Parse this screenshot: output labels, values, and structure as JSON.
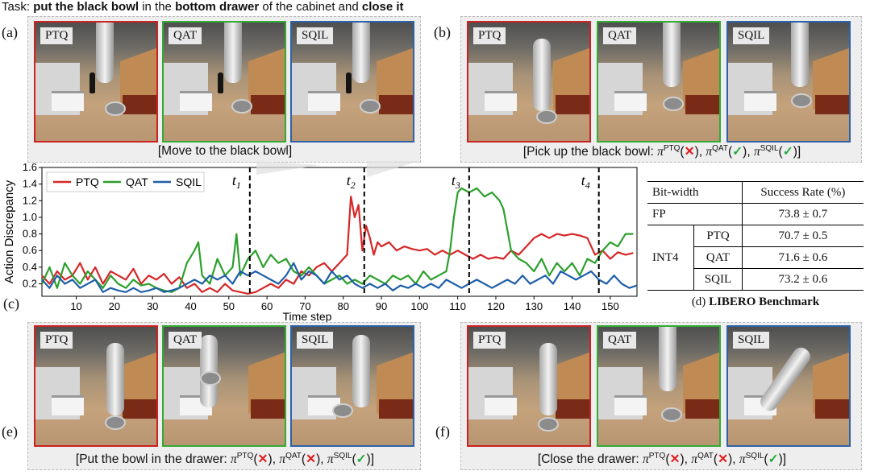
{
  "task": {
    "prefix": "Task: ",
    "b1": "put the black bowl",
    "m1": " in the ",
    "b2": "bottom drawer",
    "m2": " of the cabinet and ",
    "b3": "close it"
  },
  "panels": {
    "a": {
      "label": "(a)",
      "caption": "[Move to the black bowl]",
      "tags": [
        "PTQ",
        "QAT",
        "SQIL"
      ]
    },
    "b": {
      "label": "(b)",
      "caption_text": "[Pick up the black bowl: ",
      "tags": [
        "PTQ",
        "QAT",
        "SQIL"
      ],
      "marks": {
        "ptq": "correct-fail",
        "qat": "correct",
        "sqil": "correct"
      }
    },
    "e": {
      "label": "(e)",
      "caption_text": "[Put the bowl in the drawer: ",
      "tags": [
        "PTQ",
        "QAT",
        "SQIL"
      ]
    },
    "f": {
      "label": "(f)",
      "caption_text": "[Close the drawer: ",
      "tags": [
        "PTQ",
        "QAT",
        "SQIL"
      ]
    }
  },
  "symbols": {
    "pi": "π",
    "ptq": "PTQ",
    "qat": "QAT",
    "sqil": "SQIL",
    "cross": "✕",
    "check": "✓",
    "open": "(",
    "close": ")",
    "sep": ", ",
    "end": "]"
  },
  "chart_label": "(c)",
  "chart_data": {
    "type": "line",
    "xlabel": "Time step",
    "ylabel": "Action Discrepancy",
    "xlim": [
      1,
      157
    ],
    "ylim": [
      0.05,
      1.6
    ],
    "xticks": [
      10,
      20,
      30,
      40,
      50,
      60,
      70,
      80,
      90,
      100,
      110,
      120,
      130,
      140,
      150
    ],
    "yticks": [
      0.2,
      0.4,
      0.6,
      0.8,
      1.0,
      1.2,
      1.4,
      1.6
    ],
    "ytick_labels": [
      "0.2",
      "0.4",
      "0.6",
      "0.8",
      "1.0",
      "1.2",
      "1.4",
      "1.6"
    ],
    "legend": "top-left",
    "vlines": [
      {
        "x": 55.5,
        "label": "t",
        "sub": "1"
      },
      {
        "x": 85.5,
        "label": "t",
        "sub": "2"
      },
      {
        "x": 113,
        "label": "t",
        "sub": "3"
      },
      {
        "x": 147,
        "label": "t",
        "sub": "4"
      }
    ],
    "series": [
      {
        "name": "PTQ",
        "color": "#d62728",
        "points": [
          [
            1,
            0.3
          ],
          [
            3,
            0.2
          ],
          [
            5,
            0.35
          ],
          [
            7,
            0.25
          ],
          [
            9,
            0.3
          ],
          [
            11,
            0.45
          ],
          [
            13,
            0.25
          ],
          [
            15,
            0.4
          ],
          [
            17,
            0.2
          ],
          [
            19,
            0.35
          ],
          [
            21,
            0.3
          ],
          [
            23,
            0.25
          ],
          [
            25,
            0.38
          ],
          [
            27,
            0.2
          ],
          [
            29,
            0.3
          ],
          [
            31,
            0.25
          ],
          [
            33,
            0.32
          ],
          [
            35,
            0.2
          ],
          [
            37,
            0.28
          ],
          [
            39,
            0.15
          ],
          [
            41,
            0.2
          ],
          [
            43,
            0.1
          ],
          [
            45,
            0.15
          ],
          [
            47,
            0.1
          ],
          [
            49,
            0.2
          ],
          [
            51,
            0.12
          ],
          [
            53,
            0.1
          ],
          [
            55,
            0.08
          ],
          [
            57,
            0.1
          ],
          [
            59,
            0.15
          ],
          [
            61,
            0.2
          ],
          [
            63,
            0.15
          ],
          [
            65,
            0.25
          ],
          [
            67,
            0.2
          ],
          [
            69,
            0.35
          ],
          [
            71,
            0.3
          ],
          [
            73,
            0.4
          ],
          [
            75,
            0.45
          ],
          [
            77,
            0.35
          ],
          [
            79,
            0.45
          ],
          [
            81,
            0.55
          ],
          [
            82,
            1.25
          ],
          [
            83,
            1.0
          ],
          [
            84,
            1.15
          ],
          [
            85,
            0.6
          ],
          [
            86,
            0.9
          ],
          [
            87,
            0.75
          ],
          [
            88,
            0.55
          ],
          [
            89,
            0.7
          ],
          [
            90,
            0.65
          ],
          [
            92,
            0.7
          ],
          [
            94,
            0.6
          ],
          [
            96,
            0.65
          ],
          [
            98,
            0.62
          ],
          [
            100,
            0.6
          ],
          [
            102,
            0.62
          ],
          [
            104,
            0.55
          ],
          [
            106,
            0.6
          ],
          [
            108,
            0.55
          ],
          [
            110,
            0.6
          ],
          [
            112,
            0.55
          ],
          [
            114,
            0.5
          ],
          [
            116,
            0.55
          ],
          [
            118,
            0.5
          ],
          [
            120,
            0.52
          ],
          [
            122,
            0.5
          ],
          [
            124,
            0.6
          ],
          [
            126,
            0.55
          ],
          [
            128,
            0.65
          ],
          [
            130,
            0.75
          ],
          [
            132,
            0.8
          ],
          [
            134,
            0.75
          ],
          [
            136,
            0.8
          ],
          [
            138,
            0.78
          ],
          [
            140,
            0.8
          ],
          [
            142,
            0.78
          ],
          [
            144,
            0.75
          ],
          [
            146,
            0.55
          ],
          [
            148,
            0.6
          ],
          [
            150,
            0.5
          ],
          [
            152,
            0.58
          ],
          [
            154,
            0.55
          ],
          [
            156,
            0.57
          ]
        ]
      },
      {
        "name": "QAT",
        "color": "#2ca02c",
        "points": [
          [
            1,
            0.2
          ],
          [
            3,
            0.4
          ],
          [
            5,
            0.15
          ],
          [
            7,
            0.45
          ],
          [
            9,
            0.3
          ],
          [
            11,
            0.2
          ],
          [
            13,
            0.35
          ],
          [
            15,
            0.25
          ],
          [
            17,
            0.15
          ],
          [
            19,
            0.3
          ],
          [
            21,
            0.2
          ],
          [
            23,
            0.15
          ],
          [
            25,
            0.25
          ],
          [
            27,
            0.18
          ],
          [
            29,
            0.2
          ],
          [
            31,
            0.15
          ],
          [
            33,
            0.12
          ],
          [
            35,
            0.1
          ],
          [
            37,
            0.15
          ],
          [
            39,
            0.45
          ],
          [
            41,
            0.6
          ],
          [
            42,
            0.7
          ],
          [
            43,
            0.3
          ],
          [
            45,
            0.2
          ],
          [
            47,
            0.5
          ],
          [
            49,
            0.3
          ],
          [
            51,
            0.4
          ],
          [
            52,
            0.8
          ],
          [
            53,
            0.3
          ],
          [
            55,
            0.5
          ],
          [
            57,
            0.6
          ],
          [
            59,
            0.4
          ],
          [
            61,
            0.55
          ],
          [
            63,
            0.45
          ],
          [
            65,
            0.5
          ],
          [
            67,
            0.35
          ],
          [
            69,
            0.3
          ],
          [
            71,
            0.4
          ],
          [
            73,
            0.3
          ],
          [
            75,
            0.2
          ],
          [
            77,
            0.25
          ],
          [
            79,
            0.3
          ],
          [
            81,
            0.2
          ],
          [
            83,
            0.25
          ],
          [
            85,
            0.2
          ],
          [
            87,
            0.3
          ],
          [
            89,
            0.25
          ],
          [
            91,
            0.2
          ],
          [
            93,
            0.3
          ],
          [
            95,
            0.25
          ],
          [
            97,
            0.3
          ],
          [
            99,
            0.2
          ],
          [
            101,
            0.35
          ],
          [
            103,
            0.25
          ],
          [
            105,
            0.3
          ],
          [
            107,
            0.35
          ],
          [
            108,
            0.6
          ],
          [
            109,
            1.0
          ],
          [
            110,
            1.3
          ],
          [
            111,
            1.35
          ],
          [
            113,
            1.3
          ],
          [
            115,
            1.35
          ],
          [
            117,
            1.25
          ],
          [
            119,
            1.3
          ],
          [
            121,
            1.2
          ],
          [
            122,
            1.1
          ],
          [
            124,
            0.6
          ],
          [
            126,
            0.5
          ],
          [
            128,
            0.45
          ],
          [
            130,
            0.35
          ],
          [
            132,
            0.5
          ],
          [
            134,
            0.3
          ],
          [
            136,
            0.45
          ],
          [
            138,
            0.35
          ],
          [
            140,
            0.45
          ],
          [
            142,
            0.3
          ],
          [
            144,
            0.5
          ],
          [
            146,
            0.45
          ],
          [
            148,
            0.6
          ],
          [
            150,
            0.7
          ],
          [
            152,
            0.65
          ],
          [
            154,
            0.8
          ],
          [
            156,
            0.8
          ]
        ]
      },
      {
        "name": "SQIL",
        "color": "#1f5fa8",
        "points": [
          [
            1,
            0.25
          ],
          [
            3,
            0.15
          ],
          [
            5,
            0.3
          ],
          [
            7,
            0.2
          ],
          [
            9,
            0.25
          ],
          [
            11,
            0.15
          ],
          [
            13,
            0.2
          ],
          [
            15,
            0.25
          ],
          [
            17,
            0.1
          ],
          [
            19,
            0.15
          ],
          [
            21,
            0.12
          ],
          [
            23,
            0.1
          ],
          [
            25,
            0.15
          ],
          [
            27,
            0.1
          ],
          [
            29,
            0.12
          ],
          [
            31,
            0.15
          ],
          [
            33,
            0.1
          ],
          [
            35,
            0.12
          ],
          [
            37,
            0.15
          ],
          [
            39,
            0.2
          ],
          [
            41,
            0.25
          ],
          [
            43,
            0.2
          ],
          [
            45,
            0.3
          ],
          [
            47,
            0.25
          ],
          [
            49,
            0.3
          ],
          [
            51,
            0.2
          ],
          [
            53,
            0.35
          ],
          [
            55,
            0.3
          ],
          [
            57,
            0.35
          ],
          [
            59,
            0.3
          ],
          [
            61,
            0.25
          ],
          [
            63,
            0.2
          ],
          [
            65,
            0.3
          ],
          [
            67,
            0.45
          ],
          [
            69,
            0.25
          ],
          [
            71,
            0.35
          ],
          [
            73,
            0.3
          ],
          [
            75,
            0.2
          ],
          [
            77,
            0.35
          ],
          [
            79,
            0.25
          ],
          [
            81,
            0.3
          ],
          [
            83,
            0.2
          ],
          [
            85,
            0.15
          ],
          [
            87,
            0.2
          ],
          [
            89,
            0.15
          ],
          [
            91,
            0.2
          ],
          [
            93,
            0.12
          ],
          [
            95,
            0.18
          ],
          [
            97,
            0.15
          ],
          [
            99,
            0.2
          ],
          [
            101,
            0.15
          ],
          [
            103,
            0.2
          ],
          [
            105,
            0.15
          ],
          [
            107,
            0.25
          ],
          [
            109,
            0.2
          ],
          [
            111,
            0.15
          ],
          [
            113,
            0.2
          ],
          [
            115,
            0.25
          ],
          [
            117,
            0.2
          ],
          [
            119,
            0.15
          ],
          [
            121,
            0.2
          ],
          [
            123,
            0.25
          ],
          [
            125,
            0.2
          ],
          [
            127,
            0.3
          ],
          [
            129,
            0.2
          ],
          [
            131,
            0.25
          ],
          [
            133,
            0.3
          ],
          [
            135,
            0.2
          ],
          [
            137,
            0.35
          ],
          [
            139,
            0.3
          ],
          [
            141,
            0.25
          ],
          [
            143,
            0.3
          ],
          [
            145,
            0.35
          ],
          [
            147,
            0.25
          ],
          [
            149,
            0.2
          ],
          [
            151,
            0.3
          ],
          [
            153,
            0.2
          ],
          [
            155,
            0.15
          ],
          [
            157,
            0.18
          ]
        ]
      }
    ]
  },
  "table": {
    "header": [
      "Bit-width",
      "Success Rate (%)"
    ],
    "fp": {
      "label": "FP",
      "value": "73.8 ± 0.7"
    },
    "int4": {
      "label": "INT4",
      "rows": [
        {
          "method": "PTQ",
          "value": "70.7 ± 0.5"
        },
        {
          "method": "QAT",
          "value": "71.6 ± 0.6"
        },
        {
          "method": "SQIL",
          "value": "73.2 ± 0.6"
        }
      ]
    },
    "caption_label": "(d)",
    "caption": "LIBERO Benchmark"
  }
}
